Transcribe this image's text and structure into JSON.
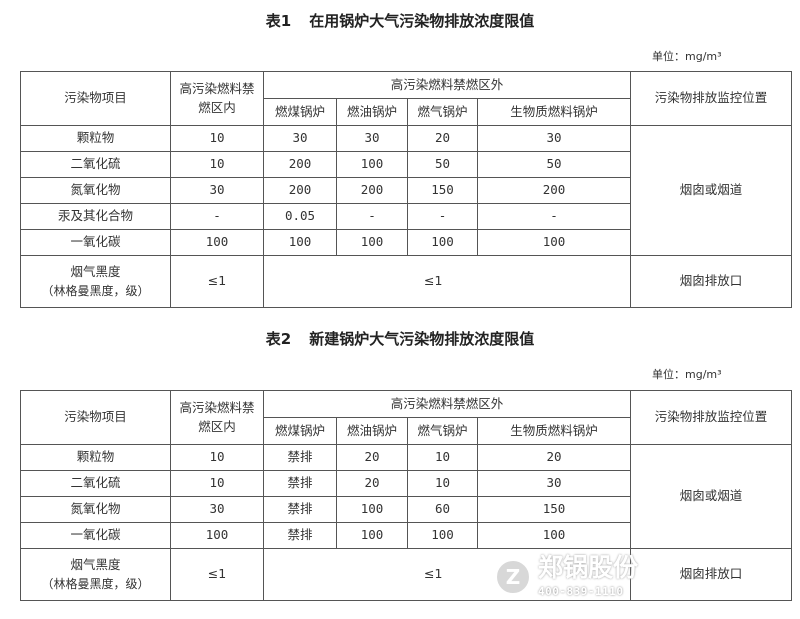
{
  "table1": {
    "number": "表1",
    "title": "在用锅炉大气污染物排放浓度限值",
    "unit": "单位：mg/m³",
    "headers": {
      "pollutant": "污染物项目",
      "inside_zone": "高污染燃料禁燃区内",
      "outside_zone": "高污染燃料禁燃区外",
      "coal": "燃煤锅炉",
      "oil": "燃油锅炉",
      "gas": "燃气锅炉",
      "biomass": "生物质燃料锅炉",
      "monitor": "污染物排放监控位置"
    },
    "rows": [
      {
        "name": "颗粒物",
        "inside": "10",
        "coal": "30",
        "oil": "30",
        "gas": "20",
        "biomass": "30"
      },
      {
        "name": "二氧化硫",
        "inside": "10",
        "coal": "200",
        "oil": "100",
        "gas": "50",
        "biomass": "50"
      },
      {
        "name": "氮氧化物",
        "inside": "30",
        "coal": "200",
        "oil": "200",
        "gas": "150",
        "biomass": "200"
      },
      {
        "name": "汞及其化合物",
        "inside": "-",
        "coal": "0.05",
        "oil": "-",
        "gas": "-",
        "biomass": "-"
      },
      {
        "name": "一氧化碳",
        "inside": "100",
        "coal": "100",
        "oil": "100",
        "gas": "100",
        "biomass": "100"
      }
    ],
    "monitor_location": "烟囱或烟道",
    "smoke": {
      "name_line1": "烟气黑度",
      "name_line2": "（林格曼黑度，级）",
      "inside": "≤1",
      "outside": "≤1",
      "monitor": "烟囱排放口"
    }
  },
  "table2": {
    "number": "表2",
    "title": "新建锅炉大气污染物排放浓度限值",
    "unit": "单位：mg/m³",
    "headers": {
      "pollutant": "污染物项目",
      "inside_zone": "高污染燃料禁燃区内",
      "outside_zone": "高污染燃料禁燃区外",
      "coal": "燃煤锅炉",
      "oil": "燃油锅炉",
      "gas": "燃气锅炉",
      "biomass": "生物质燃料锅炉",
      "monitor": "污染物排放监控位置"
    },
    "rows": [
      {
        "name": "颗粒物",
        "inside": "10",
        "coal": "禁排",
        "oil": "20",
        "gas": "10",
        "biomass": "20"
      },
      {
        "name": "二氧化硫",
        "inside": "10",
        "coal": "禁排",
        "oil": "20",
        "gas": "10",
        "biomass": "30"
      },
      {
        "name": "氮氧化物",
        "inside": "30",
        "coal": "禁排",
        "oil": "100",
        "gas": "60",
        "biomass": "150"
      },
      {
        "name": "一氧化碳",
        "inside": "100",
        "coal": "禁排",
        "oil": "100",
        "gas": "100",
        "biomass": "100"
      }
    ],
    "monitor_location": "烟囱或烟道",
    "smoke": {
      "name_line1": "烟气黑度",
      "name_line2": "（林格曼黑度，级）",
      "inside": "≤1",
      "outside": "≤1",
      "monitor": "烟囱排放口"
    }
  },
  "watermark": {
    "logo": "Z",
    "name": "郑锅股份",
    "phone": "400-839-1110"
  }
}
